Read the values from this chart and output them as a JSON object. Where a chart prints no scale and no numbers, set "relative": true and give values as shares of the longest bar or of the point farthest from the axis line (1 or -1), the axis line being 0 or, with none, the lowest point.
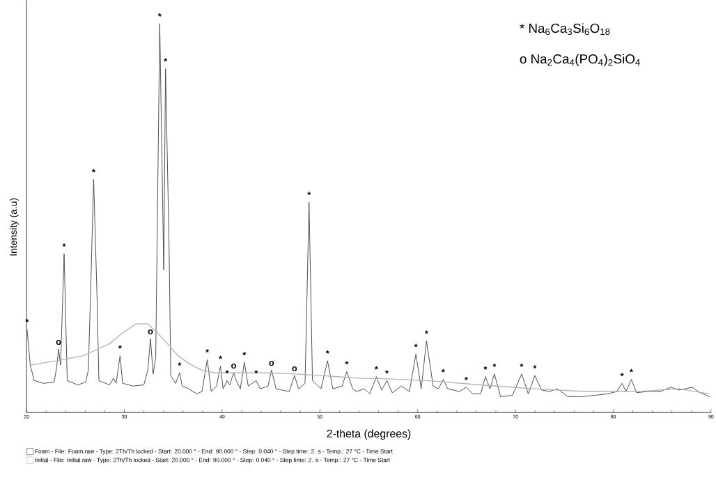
{
  "chart_data": {
    "type": "line",
    "relative": true,
    "xlabel": "2-theta (degrees)",
    "ylabel": "Intensity (a.u)",
    "xlim": [
      20,
      90
    ],
    "xticks": [
      20,
      30,
      40,
      50,
      60,
      70,
      80,
      90
    ],
    "tick_labels": "x",
    "legend": "bottom",
    "series": [
      {
        "name": "Foam - File: Foam.raw - Type: 2Th/Th locked - Start: 20.000 ° - End: 90.000 ° - Step: 0.040 ° - Step time: 2. s - Temp.: 27 °C - Time Start",
        "color": "#3a3a3a",
        "x": [
          20.05,
          20.38,
          20.78,
          21.73,
          22.81,
          23.08,
          23.27,
          23.48,
          23.84,
          24.16,
          25.24,
          26.05,
          26.32,
          26.59,
          26.86,
          27.19,
          27.4,
          28.48,
          28.89,
          29.16,
          29.56,
          29.83,
          30.91,
          31.99,
          32.4,
          32.67,
          32.94,
          33.21,
          33.62,
          33.89,
          34.03,
          34.21,
          34.56,
          34.75,
          35.24,
          35.65,
          35.92,
          36.59,
          37.4,
          37.94,
          38.48,
          38.89,
          39.43,
          39.83,
          40.1,
          40.51,
          40.78,
          41.18,
          41.45,
          41.86,
          42.27,
          42.67,
          43.48,
          43.89,
          44.7,
          45.05,
          45.51,
          46.86,
          47.4,
          47.81,
          48.48,
          48.89,
          49.24,
          50.11,
          50.78,
          51.32,
          52.27,
          52.75,
          53.35,
          53.74,
          54.55,
          55.09,
          55.77,
          56.31,
          56.85,
          57.39,
          58.34,
          59.15,
          59.82,
          60.36,
          60.9,
          61.58,
          62.12,
          62.61,
          63.07,
          64.28,
          64.96,
          65.63,
          66.44,
          66.93,
          67.39,
          67.85,
          68.47,
          69.69,
          70.63,
          71.31,
          71.98,
          72.66,
          73.47,
          74.28,
          75.36,
          76.71,
          78.06,
          79.42,
          80.36,
          80.9,
          81.31,
          81.85,
          82.39,
          83.47,
          84.82,
          85.9,
          86.71,
          87.39,
          88.07,
          88.88,
          89.82
        ],
        "values": [
          0.214,
          0.122,
          0.082,
          0.075,
          0.078,
          0.116,
          0.163,
          0.122,
          0.408,
          0.082,
          0.071,
          0.078,
          0.109,
          0.347,
          0.599,
          0.313,
          0.082,
          0.071,
          0.088,
          0.075,
          0.146,
          0.075,
          0.068,
          0.071,
          0.109,
          0.19,
          0.099,
          0.143,
          1.0,
          0.585,
          0.367,
          0.884,
          0.449,
          0.095,
          0.075,
          0.102,
          0.068,
          0.061,
          0.048,
          0.054,
          0.136,
          0.054,
          0.068,
          0.119,
          0.061,
          0.082,
          0.071,
          0.102,
          0.082,
          0.061,
          0.129,
          0.068,
          0.082,
          0.061,
          0.068,
          0.109,
          0.061,
          0.054,
          0.095,
          0.061,
          0.075,
          0.541,
          0.082,
          0.061,
          0.133,
          0.061,
          0.068,
          0.105,
          0.061,
          0.054,
          0.061,
          0.048,
          0.092,
          0.058,
          0.082,
          0.051,
          0.068,
          0.054,
          0.15,
          0.061,
          0.184,
          0.068,
          0.061,
          0.085,
          0.061,
          0.054,
          0.065,
          0.048,
          0.048,
          0.092,
          0.061,
          0.099,
          0.041,
          0.044,
          0.099,
          0.048,
          0.095,
          0.058,
          0.054,
          0.061,
          0.041,
          0.041,
          0.044,
          0.048,
          0.054,
          0.075,
          0.054,
          0.085,
          0.051,
          0.054,
          0.054,
          0.065,
          0.058,
          0.061,
          0.065,
          0.051,
          0.041
        ]
      },
      {
        "name": "Initial - File: Initial.raw - Type: 2Th/Th locked - Start: 20.000 ° - End: 90.000 ° - Step: 0.040 ° - Step time: 2. s - Temp.: 27 °C - Time Start",
        "color": "#b4b4b4",
        "x": [
          20.4,
          23.1,
          25.8,
          28.5,
          29.8,
          31.2,
          32.4,
          33.4,
          34.4,
          35.5,
          36.6,
          37.9,
          39.3,
          42.0,
          44.7,
          47.4,
          50.1,
          54.2,
          55.6,
          61.0,
          66.4,
          71.8,
          77.2,
          82.7,
          86.7,
          89.8
        ],
        "values": [
          0.122,
          0.133,
          0.146,
          0.177,
          0.204,
          0.228,
          0.228,
          0.204,
          0.177,
          0.146,
          0.126,
          0.109,
          0.102,
          0.102,
          0.102,
          0.099,
          0.095,
          0.088,
          0.088,
          0.082,
          0.071,
          0.061,
          0.054,
          0.054,
          0.061,
          0.048
        ]
      }
    ],
    "annotations": [
      "* Na$_{6}$Ca$_{3}$Si$_{6}$O$_{18}$",
      "o Na$_{2}$Ca$_{4}$(PO$_{4}$)$_{2}$SiO$_{4}$",
      {
        "text": "*",
        "x": 20.05,
        "y": 0.214
      },
      {
        "text": "o",
        "x": 23.27,
        "y": 0.163
      },
      {
        "text": "*",
        "x": 23.84,
        "y": 0.408
      },
      {
        "text": "*",
        "x": 26.86,
        "y": 0.599
      },
      {
        "text": "*",
        "x": 29.56,
        "y": 0.146
      },
      {
        "text": "o",
        "x": 32.67,
        "y": 0.19
      },
      {
        "text": "*",
        "x": 33.62,
        "y": 1.0
      },
      {
        "text": "*",
        "x": 34.21,
        "y": 0.884
      },
      {
        "text": "*",
        "x": 35.65,
        "y": 0.102
      },
      {
        "text": "*",
        "x": 38.48,
        "y": 0.136
      },
      {
        "text": "*",
        "x": 39.83,
        "y": 0.119
      },
      {
        "text": "*",
        "x": 40.51,
        "y": 0.082
      },
      {
        "text": "o",
        "x": 41.18,
        "y": 0.102
      },
      {
        "text": "*",
        "x": 42.27,
        "y": 0.129
      },
      {
        "text": "*",
        "x": 43.48,
        "y": 0.082
      },
      {
        "text": "o",
        "x": 45.05,
        "y": 0.109
      },
      {
        "text": "o",
        "x": 47.4,
        "y": 0.095
      },
      {
        "text": "*",
        "x": 48.89,
        "y": 0.541
      },
      {
        "text": "*",
        "x": 50.78,
        "y": 0.133
      },
      {
        "text": "*",
        "x": 52.75,
        "y": 0.105
      },
      {
        "text": "*",
        "x": 55.77,
        "y": 0.092
      },
      {
        "text": "*",
        "x": 56.85,
        "y": 0.082
      },
      {
        "text": "*",
        "x": 59.82,
        "y": 0.15
      },
      {
        "text": "*",
        "x": 60.9,
        "y": 0.184
      },
      {
        "text": "*",
        "x": 62.61,
        "y": 0.085
      },
      {
        "text": "*",
        "x": 64.96,
        "y": 0.065
      },
      {
        "text": "*",
        "x": 66.93,
        "y": 0.092
      },
      {
        "text": "*",
        "x": 67.85,
        "y": 0.099
      },
      {
        "text": "*",
        "x": 70.63,
        "y": 0.099
      },
      {
        "text": "*",
        "x": 71.98,
        "y": 0.095
      },
      {
        "text": "*",
        "x": 80.9,
        "y": 0.075
      },
      {
        "text": "*",
        "x": 81.85,
        "y": 0.085
      }
    ]
  }
}
